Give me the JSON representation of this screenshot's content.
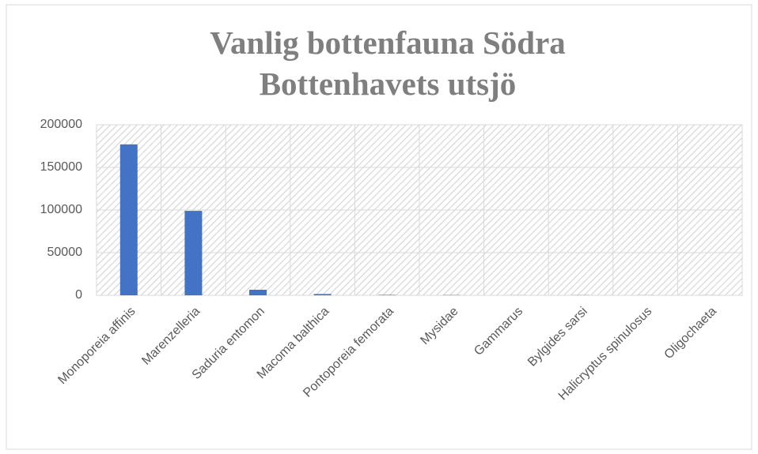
{
  "chart_data": {
    "type": "bar",
    "title": "Vanlig bottenfauna Södra Bottenhavets utsjö",
    "categories": [
      "Monoporeia affinis",
      "Marenzelleria",
      "Saduria entomon",
      "Macoma balthica",
      "Pontoporeia femorata",
      "Mysidae",
      "Gammarus",
      "Bylgides sarsi",
      "Halicryptus spinulosus",
      "Oligochaeta"
    ],
    "values": [
      177000,
      99000,
      6500,
      1500,
      500,
      300,
      100,
      200,
      100,
      100
    ],
    "color": "#4472c4",
    "ylim": [
      0,
      200000
    ],
    "yticks": [
      0,
      50000,
      100000,
      150000,
      200000
    ],
    "grid": true
  }
}
